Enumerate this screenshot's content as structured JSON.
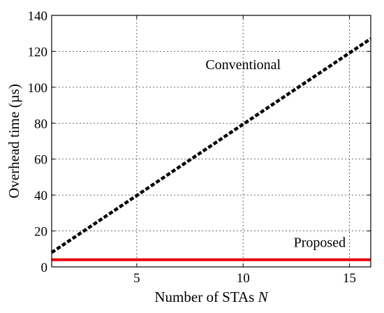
{
  "chart_data": {
    "type": "line",
    "title": "",
    "xlabel": "Number of STAs ",
    "xlabel_var": "N",
    "ylabel": "Overhead time (µs)",
    "xlim": [
      1,
      16
    ],
    "ylim": [
      0,
      140
    ],
    "xticks": [
      5,
      10,
      15
    ],
    "yticks": [
      0,
      20,
      40,
      60,
      80,
      100,
      120,
      140
    ],
    "grid": true,
    "series": [
      {
        "name": "Conventional",
        "color": "#000000",
        "style": "dashed",
        "x": [
          1,
          16
        ],
        "y": [
          8,
          127
        ]
      },
      {
        "name": "Proposed",
        "color": "#e8000b",
        "style": "solid",
        "x": [
          1,
          16
        ],
        "y": [
          4,
          4
        ]
      }
    ],
    "annotations": [
      {
        "text": "Conventional",
        "x": 10,
        "y": 110
      },
      {
        "text": "Proposed",
        "x": 13.6,
        "y": 11
      }
    ]
  }
}
